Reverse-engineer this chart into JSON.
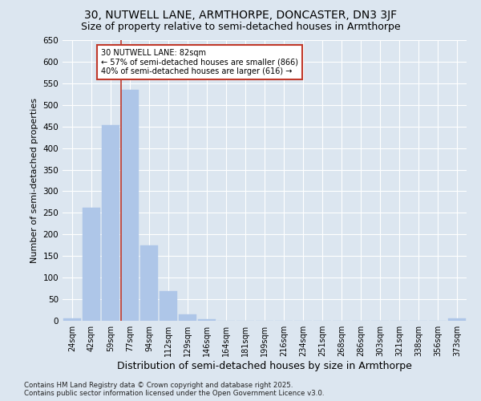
{
  "title1": "30, NUTWELL LANE, ARMTHORPE, DONCASTER, DN3 3JF",
  "title2": "Size of property relative to semi-detached houses in Armthorpe",
  "xlabel": "Distribution of semi-detached houses by size in Armthorpe",
  "ylabel": "Number of semi-detached properties",
  "categories": [
    "24sqm",
    "42sqm",
    "59sqm",
    "77sqm",
    "94sqm",
    "112sqm",
    "129sqm",
    "146sqm",
    "164sqm",
    "181sqm",
    "199sqm",
    "216sqm",
    "234sqm",
    "251sqm",
    "268sqm",
    "286sqm",
    "303sqm",
    "321sqm",
    "338sqm",
    "356sqm",
    "373sqm"
  ],
  "values": [
    5,
    262,
    453,
    535,
    175,
    68,
    15,
    3,
    0,
    0,
    0,
    0,
    0,
    0,
    0,
    0,
    0,
    0,
    0,
    0,
    5
  ],
  "bar_color": "#aec6e8",
  "highlight_bar_index": 3,
  "highlight_bar_color": "#c0392b",
  "highlight_line_color": "#c0392b",
  "ylim": [
    0,
    650
  ],
  "yticks": [
    0,
    50,
    100,
    150,
    200,
    250,
    300,
    350,
    400,
    450,
    500,
    550,
    600,
    650
  ],
  "annotation_title": "30 NUTWELL LANE: 82sqm",
  "annotation_line1": "← 57% of semi-detached houses are smaller (866)",
  "annotation_line2": "40% of semi-detached houses are larger (616) →",
  "annotation_box_color": "#ffffff",
  "annotation_box_edge": "#c0392b",
  "footer1": "Contains HM Land Registry data © Crown copyright and database right 2025.",
  "footer2": "Contains public sector information licensed under the Open Government Licence v3.0.",
  "bg_color": "#dce6f0",
  "plot_bg_color": "#dce6f0",
  "grid_color": "#ffffff",
  "title_fontsize": 10,
  "subtitle_fontsize": 9
}
